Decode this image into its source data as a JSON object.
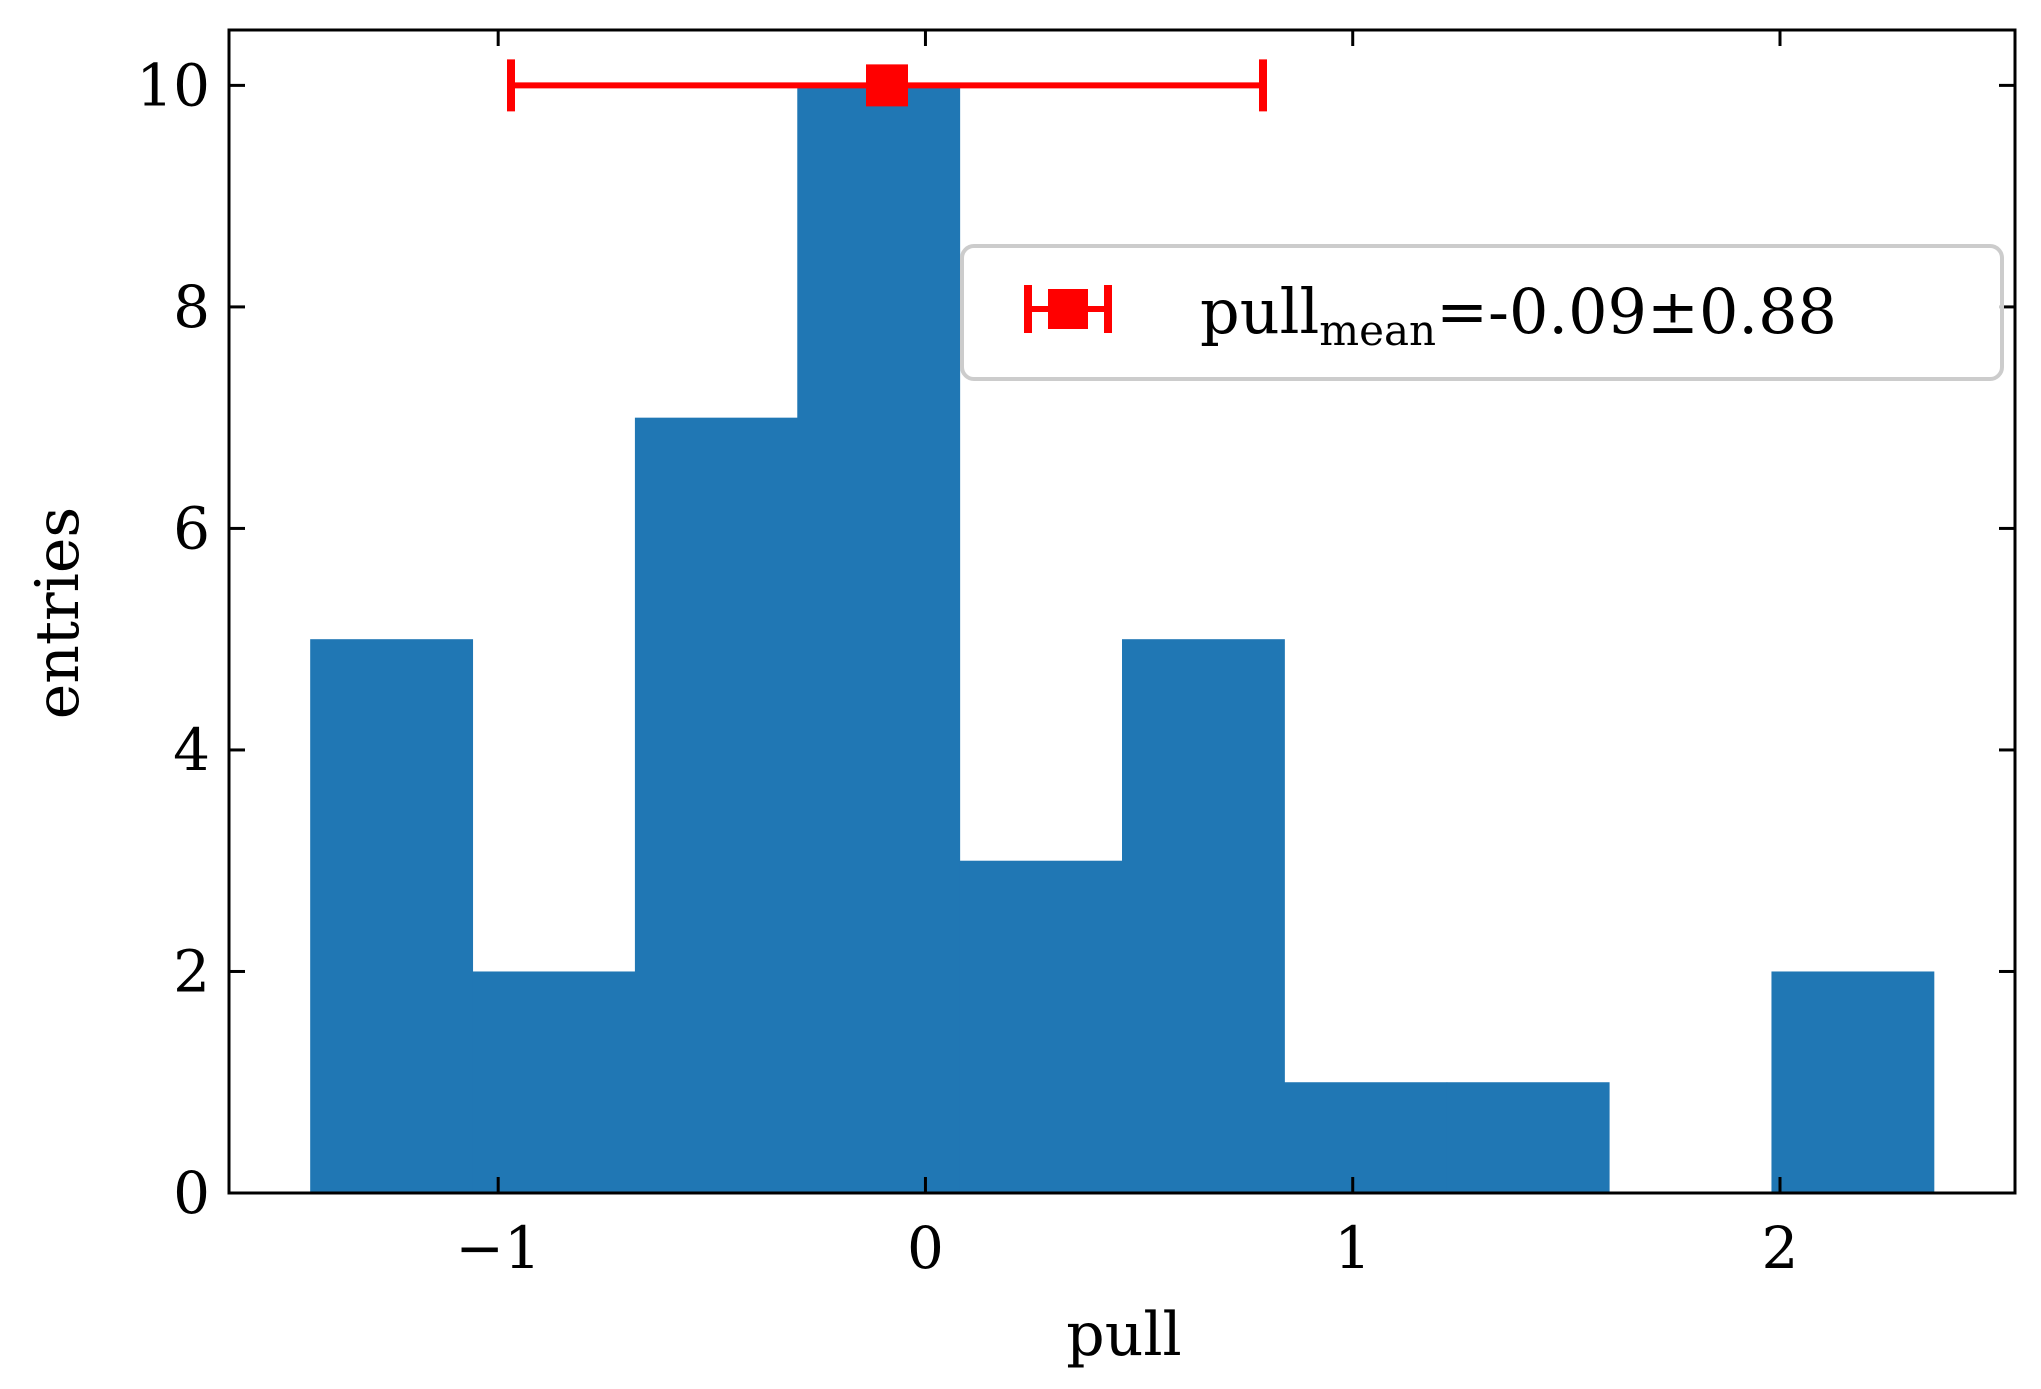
{
  "chart_data": {
    "type": "bar",
    "histogram": {
      "bin_edges": [
        -1.44,
        -1.06,
        -0.68,
        -0.3,
        0.08,
        0.46,
        0.84,
        1.22,
        1.6,
        1.98,
        2.36
      ],
      "counts": [
        5,
        2,
        7,
        10,
        3,
        5,
        1,
        1,
        0,
        2
      ],
      "color": "#2077b4"
    },
    "mean_marker": {
      "x": -0.09,
      "x_err": 0.88,
      "y": 10,
      "color": "#ff0000"
    },
    "legend": {
      "position": "upper-right",
      "entries": [
        {
          "label_main": "pull",
          "label_sub": "mean",
          "label_rest": "=-0.09±0.88"
        }
      ]
    },
    "xlabel": "pull",
    "ylabel": "entries",
    "xlim": [
      -1.63,
      2.55
    ],
    "ylim": [
      0,
      10.5
    ],
    "xticks": [
      -1,
      0,
      1,
      2
    ],
    "xtick_labels": [
      "−1",
      "0",
      "1",
      "2"
    ],
    "yticks": [
      0,
      2,
      4,
      6,
      8,
      10
    ],
    "ytick_labels": [
      "0",
      "2",
      "4",
      "6",
      "8",
      "10"
    ],
    "grid": false
  }
}
